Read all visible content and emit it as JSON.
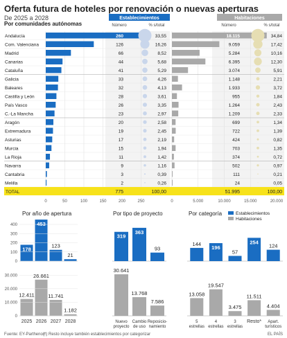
{
  "title": "Oferta futura de hoteles por renovación o nuevas aperturas",
  "subtitle": "De 2025 a 2028",
  "colors": {
    "blue": "#1a6dc2",
    "grey": "#a9a9a9",
    "blue_circle": "#c9d6eb",
    "gold_circle": "#e6deb3",
    "total_row": "#f7e21a",
    "stripe": "#f2f2f2",
    "header_grey": "#f0f0f0"
  },
  "chart_data": [
    {
      "type": "bar",
      "title": "Por comunidades autónomas",
      "group_headers": [
        "Establecimientos",
        "Habitaciones"
      ],
      "column_headers": [
        "Número",
        "% s/total",
        "Número",
        "% s/total"
      ],
      "total_label": "TOTAL",
      "total_establecimientos": "775",
      "total_pct_est": "100,00",
      "total_habitaciones": "51.995",
      "total_pct_hab": "100,00",
      "axis_est": {
        "ticks": [
          "0",
          "50",
          "100",
          "150",
          "200",
          "250"
        ],
        "max": 250
      },
      "axis_hab": {
        "ticks": [
          "0",
          "5.000",
          "10.000",
          "15.000",
          "20.000"
        ],
        "max": 20000
      },
      "rows": [
        {
          "region": "Andalucía",
          "est": 260,
          "est_label": "260",
          "pct_est": "33,55",
          "hab": 18115,
          "hab_label": "18.115",
          "pct_hab": "34,84"
        },
        {
          "region": "Com. Valenciana",
          "est": 126,
          "est_label": "126",
          "pct_est": "16,26",
          "hab": 9059,
          "hab_label": "9.059",
          "pct_hab": "17,42"
        },
        {
          "region": "Madrid",
          "est": 66,
          "est_label": "66",
          "pct_est": "8,52",
          "hab": 5284,
          "hab_label": "5.284",
          "pct_hab": "10,16"
        },
        {
          "region": "Canarias",
          "est": 44,
          "est_label": "44",
          "pct_est": "5,68",
          "hab": 6395,
          "hab_label": "6.395",
          "pct_hab": "12,30"
        },
        {
          "region": "Cataluña",
          "est": 41,
          "est_label": "41",
          "pct_est": "5,29",
          "hab": 3074,
          "hab_label": "3.074",
          "pct_hab": "5,91"
        },
        {
          "region": "Galicia",
          "est": 33,
          "est_label": "33",
          "pct_est": "4,26",
          "hab": 1148,
          "hab_label": "1.148",
          "pct_hab": "2,21"
        },
        {
          "region": "Baleares",
          "est": 32,
          "est_label": "32",
          "pct_est": "4,13",
          "hab": 1933,
          "hab_label": "1.933",
          "pct_hab": "3,72"
        },
        {
          "region": "Castilla y León",
          "est": 28,
          "est_label": "28",
          "pct_est": "3,61",
          "hab": 955,
          "hab_label": "955",
          "pct_hab": "1,84"
        },
        {
          "region": "País Vasco",
          "est": 26,
          "est_label": "26",
          "pct_est": "3,35",
          "hab": 1264,
          "hab_label": "1.264",
          "pct_hab": "2,43"
        },
        {
          "region": "C.-La Mancha",
          "est": 23,
          "est_label": "23",
          "pct_est": "2,97",
          "hab": 1209,
          "hab_label": "1.209",
          "pct_hab": "2,33"
        },
        {
          "region": "Aragón",
          "est": 20,
          "est_label": "20",
          "pct_est": "2,58",
          "hab": 699,
          "hab_label": "699",
          "pct_hab": "1,34"
        },
        {
          "region": "Extremadura",
          "est": 19,
          "est_label": "19",
          "pct_est": "2,45",
          "hab": 722,
          "hab_label": "722",
          "pct_hab": "1,39"
        },
        {
          "region": "Asturias",
          "est": 17,
          "est_label": "17",
          "pct_est": "2,19",
          "hab": 424,
          "hab_label": "424",
          "pct_hab": "0,82"
        },
        {
          "region": "Murcia",
          "est": 15,
          "est_label": "15",
          "pct_est": "1,94",
          "hab": 703,
          "hab_label": "703",
          "pct_hab": "1,35"
        },
        {
          "region": "La Rioja",
          "est": 11,
          "est_label": "11",
          "pct_est": "1,42",
          "hab": 374,
          "hab_label": "374",
          "pct_hab": "0,72"
        },
        {
          "region": "Navarra",
          "est": 9,
          "est_label": "9",
          "pct_est": "1,16",
          "hab": 502,
          "hab_label": "502",
          "pct_hab": "0,97"
        },
        {
          "region": "Cantabria",
          "est": 3,
          "est_label": "3",
          "pct_est": "0,39",
          "hab": 111,
          "hab_label": "111",
          "pct_hab": "0,21"
        },
        {
          "region": "Melilla",
          "est": 2,
          "est_label": "2",
          "pct_est": "0,26",
          "hab": 24,
          "hab_label": "24",
          "pct_hab": "0,05"
        }
      ]
    },
    {
      "type": "bar",
      "title": "Por año de apertura",
      "categories": [
        "2025",
        "2026",
        "2027",
        "2028"
      ],
      "series": [
        {
          "name": "Establecimientos",
          "values": [
            178,
            453,
            123,
            21
          ],
          "labels": [
            "178",
            "453",
            "123",
            "21"
          ]
        },
        {
          "name": "Habitaciones",
          "values": [
            12411,
            26661,
            11741,
            1182
          ],
          "labels": [
            "12.411",
            "26.661",
            "11.741",
            "1.182"
          ]
        }
      ],
      "axis_top": {
        "ticks": [
          "0",
          "100",
          "200",
          "300",
          "400",
          "500"
        ],
        "max": 500
      },
      "axis_bottom": {
        "ticks": [
          "0",
          "10.000",
          "20.000",
          "30.000"
        ],
        "max": 30000
      }
    },
    {
      "type": "bar",
      "title": "Por tipo de proyecto",
      "categories": [
        [
          "Nuevo",
          "proyecto"
        ],
        [
          "Cambio",
          "de uso"
        ],
        [
          "Reposicio-",
          "namiento"
        ]
      ],
      "series": [
        {
          "name": "Establecimientos",
          "values": [
            319,
            363,
            93
          ],
          "labels": [
            "319",
            "363",
            "93"
          ]
        },
        {
          "name": "Habitaciones",
          "values": [
            30641,
            13768,
            7586
          ],
          "labels": [
            "30.641",
            "13.768",
            "7.586"
          ]
        }
      ]
    },
    {
      "type": "bar",
      "title": "Por categoría",
      "legend": [
        "Establecimientos",
        "Habitaciones"
      ],
      "categories": [
        [
          "5",
          "estrellas"
        ],
        [
          "4",
          "estrellas"
        ],
        [
          "3",
          "estrellas"
        ],
        [
          "Resto*"
        ],
        [
          "Apart.",
          "turísticos"
        ]
      ],
      "series": [
        {
          "name": "Establecimientos",
          "values": [
            144,
            196,
            57,
            254,
            124
          ],
          "labels": [
            "144",
            "196",
            "57",
            "254",
            "124"
          ]
        },
        {
          "name": "Habitaciones",
          "values": [
            13058,
            19547,
            3475,
            11511,
            4404
          ],
          "labels": [
            "13.058",
            "19.547",
            "3.475",
            "11.511",
            "4.404"
          ]
        }
      ]
    }
  ],
  "footer": {
    "source": "Fuente: EY-Parthenon.",
    "note": "(*) Resto incluye también establecimientos por categorizar",
    "brand": "EL PAÍS"
  }
}
